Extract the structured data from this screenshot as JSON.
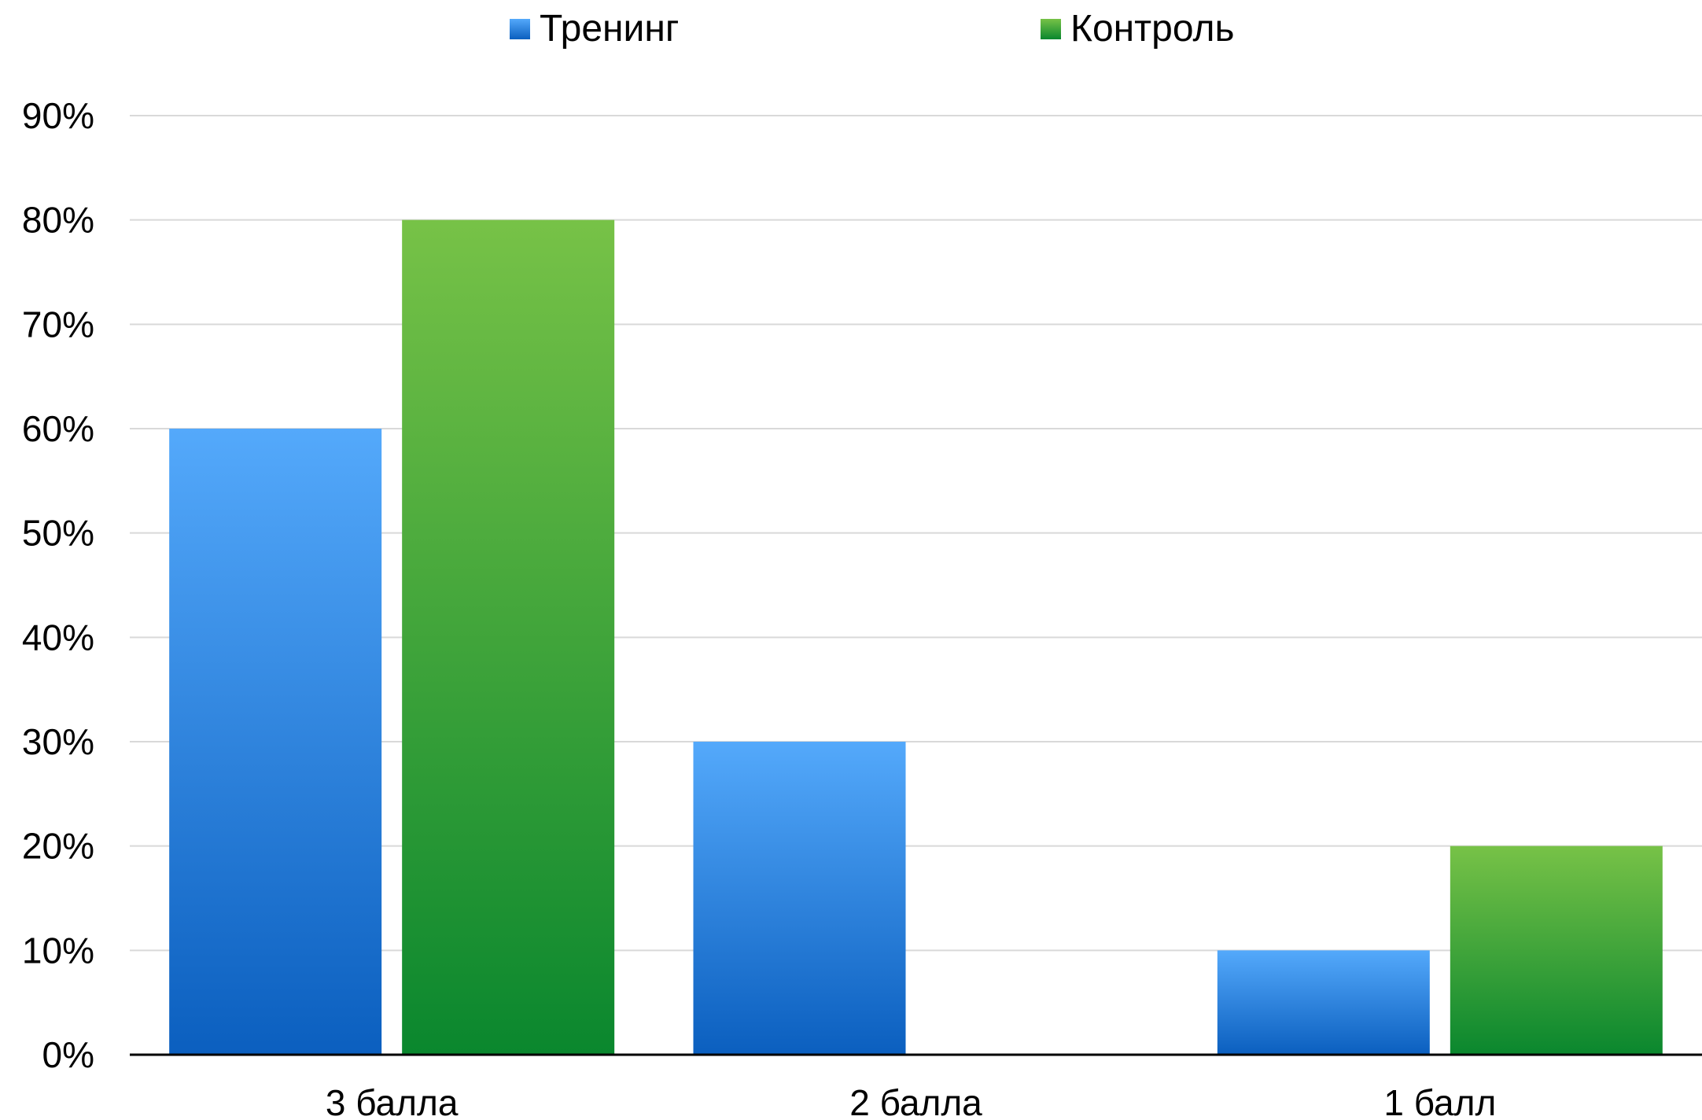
{
  "chart_data": {
    "type": "bar",
    "categories": [
      "3 балла",
      "2 балла",
      "1 балл"
    ],
    "series": [
      {
        "name": "Тренинг",
        "values": [
          60,
          30,
          10
        ],
        "color_top": "#54a9fb",
        "color_bottom": "#0b5fbf"
      },
      {
        "name": "Контроль",
        "values": [
          80,
          0,
          20
        ],
        "color_top": "#77c247",
        "color_bottom": "#0a872e"
      }
    ],
    "ylim": [
      0,
      90
    ],
    "yticks": [
      0,
      10,
      20,
      30,
      40,
      50,
      60,
      70,
      80,
      90
    ],
    "ytick_labels": [
      "0%",
      "10%",
      "20%",
      "30%",
      "40%",
      "50%",
      "60%",
      "70%",
      "80%",
      "90%"
    ],
    "grid": true,
    "legend_position": "top",
    "title": "",
    "xlabel": "",
    "ylabel": "",
    "gridline_color": "#d9d9d9",
    "axis_color": "#000000"
  }
}
